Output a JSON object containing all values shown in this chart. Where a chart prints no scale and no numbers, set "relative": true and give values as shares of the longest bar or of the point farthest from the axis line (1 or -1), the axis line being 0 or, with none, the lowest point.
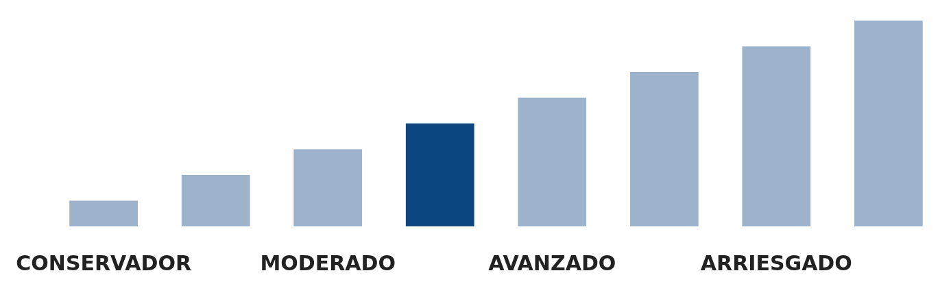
{
  "chart_data": {
    "type": "bar",
    "relative": true,
    "categories": [
      "CONSERVADOR",
      null,
      "MODERADO",
      null,
      "AVANZADO",
      null,
      "ARRIESGADO",
      null
    ],
    "values": [
      0.125,
      0.25,
      0.375,
      0.5,
      0.625,
      0.75,
      0.875,
      1
    ],
    "colors": [
      "#9db3cc",
      "#9db3cc",
      "#9db3cc",
      "#0b4680",
      "#9db3cc",
      "#9db3cc",
      "#9db3cc",
      "#9db3cc"
    ]
  }
}
